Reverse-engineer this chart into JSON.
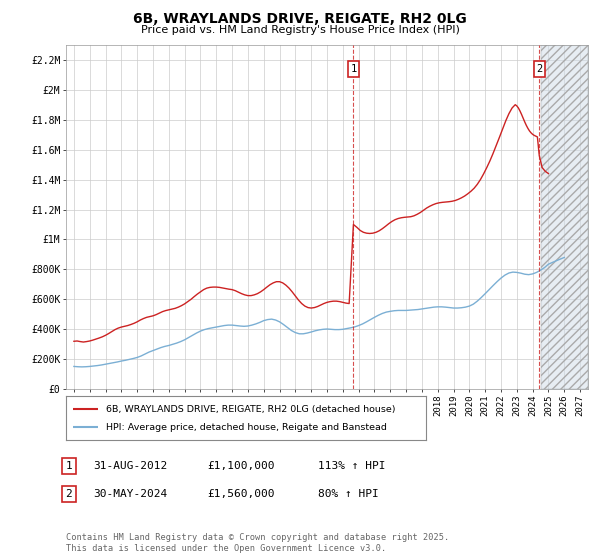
{
  "title_line1": "6B, WRAYLANDS DRIVE, REIGATE, RH2 0LG",
  "title_line2": "Price paid vs. HM Land Registry's House Price Index (HPI)",
  "legend_label1": "6B, WRAYLANDS DRIVE, REIGATE, RH2 0LG (detached house)",
  "legend_label2": "HPI: Average price, detached house, Reigate and Banstead",
  "annotation1": {
    "num": "1",
    "date": "31-AUG-2012",
    "price": "£1,100,000",
    "hpi": "113% ↑ HPI",
    "x": 2012.67
  },
  "annotation2": {
    "num": "2",
    "date": "30-MAY-2024",
    "price": "£1,560,000",
    "hpi": "80% ↑ HPI",
    "x": 2024.42
  },
  "footer": "Contains HM Land Registry data © Crown copyright and database right 2025.\nThis data is licensed under the Open Government Licence v3.0.",
  "hpi_color": "#7bafd4",
  "price_color": "#cc2222",
  "shade_color": "#d0dce8",
  "background_color": "#ffffff",
  "grid_color": "#cccccc",
  "ylim": [
    0,
    2300000
  ],
  "xlim": [
    1994.5,
    2027.5
  ],
  "shade_start": 2024.5,
  "yticks": [
    0,
    200000,
    400000,
    600000,
    800000,
    1000000,
    1200000,
    1400000,
    1600000,
    1800000,
    2000000,
    2200000
  ],
  "ytick_labels": [
    "£0",
    "£200K",
    "£400K",
    "£600K",
    "£800K",
    "£1M",
    "£1.2M",
    "£1.4M",
    "£1.6M",
    "£1.8M",
    "£2M",
    "£2.2M"
  ],
  "xticks": [
    1995,
    1996,
    1997,
    1998,
    1999,
    2000,
    2001,
    2002,
    2003,
    2004,
    2005,
    2006,
    2007,
    2008,
    2009,
    2010,
    2011,
    2012,
    2013,
    2014,
    2015,
    2016,
    2017,
    2018,
    2019,
    2020,
    2021,
    2022,
    2023,
    2024,
    2025,
    2026,
    2027
  ],
  "hpi_data": [
    [
      1995.0,
      152000
    ],
    [
      1995.25,
      150000
    ],
    [
      1995.5,
      149000
    ],
    [
      1995.75,
      150000
    ],
    [
      1996.0,
      152000
    ],
    [
      1996.25,
      155000
    ],
    [
      1996.5,
      158000
    ],
    [
      1996.75,
      162000
    ],
    [
      1997.0,
      167000
    ],
    [
      1997.25,
      172000
    ],
    [
      1997.5,
      177000
    ],
    [
      1997.75,
      182000
    ],
    [
      1998.0,
      188000
    ],
    [
      1998.25,
      193000
    ],
    [
      1998.5,
      199000
    ],
    [
      1998.75,
      205000
    ],
    [
      1999.0,
      212000
    ],
    [
      1999.25,
      222000
    ],
    [
      1999.5,
      235000
    ],
    [
      1999.75,
      248000
    ],
    [
      2000.0,
      258000
    ],
    [
      2000.25,
      268000
    ],
    [
      2000.5,
      278000
    ],
    [
      2000.75,
      286000
    ],
    [
      2001.0,
      292000
    ],
    [
      2001.25,
      300000
    ],
    [
      2001.5,
      308000
    ],
    [
      2001.75,
      318000
    ],
    [
      2002.0,
      330000
    ],
    [
      2002.25,
      345000
    ],
    [
      2002.5,
      360000
    ],
    [
      2002.75,
      375000
    ],
    [
      2003.0,
      388000
    ],
    [
      2003.25,
      398000
    ],
    [
      2003.5,
      405000
    ],
    [
      2003.75,
      410000
    ],
    [
      2004.0,
      415000
    ],
    [
      2004.25,
      420000
    ],
    [
      2004.5,
      425000
    ],
    [
      2004.75,
      428000
    ],
    [
      2005.0,
      428000
    ],
    [
      2005.25,
      425000
    ],
    [
      2005.5,
      422000
    ],
    [
      2005.75,
      420000
    ],
    [
      2006.0,
      422000
    ],
    [
      2006.25,
      428000
    ],
    [
      2006.5,
      436000
    ],
    [
      2006.75,
      446000
    ],
    [
      2007.0,
      458000
    ],
    [
      2007.25,
      465000
    ],
    [
      2007.5,
      468000
    ],
    [
      2007.75,
      462000
    ],
    [
      2008.0,
      450000
    ],
    [
      2008.25,
      432000
    ],
    [
      2008.5,
      412000
    ],
    [
      2008.75,
      392000
    ],
    [
      2009.0,
      378000
    ],
    [
      2009.25,
      370000
    ],
    [
      2009.5,
      370000
    ],
    [
      2009.75,
      375000
    ],
    [
      2010.0,
      382000
    ],
    [
      2010.25,
      390000
    ],
    [
      2010.5,
      396000
    ],
    [
      2010.75,
      400000
    ],
    [
      2011.0,
      402000
    ],
    [
      2011.25,
      400000
    ],
    [
      2011.5,
      398000
    ],
    [
      2011.75,
      398000
    ],
    [
      2012.0,
      400000
    ],
    [
      2012.25,
      405000
    ],
    [
      2012.5,
      410000
    ],
    [
      2012.75,
      416000
    ],
    [
      2013.0,
      425000
    ],
    [
      2013.25,
      436000
    ],
    [
      2013.5,
      450000
    ],
    [
      2013.75,
      465000
    ],
    [
      2014.0,
      480000
    ],
    [
      2014.25,
      494000
    ],
    [
      2014.5,
      506000
    ],
    [
      2014.75,
      515000
    ],
    [
      2015.0,
      520000
    ],
    [
      2015.25,
      524000
    ],
    [
      2015.5,
      526000
    ],
    [
      2015.75,
      526000
    ],
    [
      2016.0,
      526000
    ],
    [
      2016.25,
      528000
    ],
    [
      2016.5,
      530000
    ],
    [
      2016.75,
      532000
    ],
    [
      2017.0,
      536000
    ],
    [
      2017.25,
      540000
    ],
    [
      2017.5,
      544000
    ],
    [
      2017.75,
      548000
    ],
    [
      2018.0,
      550000
    ],
    [
      2018.25,
      550000
    ],
    [
      2018.5,
      548000
    ],
    [
      2018.75,
      545000
    ],
    [
      2019.0,
      542000
    ],
    [
      2019.25,
      542000
    ],
    [
      2019.5,
      544000
    ],
    [
      2019.75,
      548000
    ],
    [
      2020.0,
      555000
    ],
    [
      2020.25,
      568000
    ],
    [
      2020.5,
      588000
    ],
    [
      2020.75,
      612000
    ],
    [
      2021.0,
      638000
    ],
    [
      2021.25,
      665000
    ],
    [
      2021.5,
      692000
    ],
    [
      2021.75,
      718000
    ],
    [
      2022.0,
      742000
    ],
    [
      2022.25,
      762000
    ],
    [
      2022.5,
      776000
    ],
    [
      2022.75,
      782000
    ],
    [
      2023.0,
      780000
    ],
    [
      2023.25,
      775000
    ],
    [
      2023.5,
      768000
    ],
    [
      2023.75,
      765000
    ],
    [
      2024.0,
      770000
    ],
    [
      2024.25,
      780000
    ],
    [
      2024.5,
      795000
    ],
    [
      2024.75,
      812000
    ],
    [
      2025.0,
      835000
    ],
    [
      2025.5,
      858000
    ],
    [
      2026.0,
      880000
    ]
  ],
  "price_data": [
    [
      1995.0,
      320000
    ],
    [
      1995.2,
      322000
    ],
    [
      1995.4,
      318000
    ],
    [
      1995.6,
      315000
    ],
    [
      1995.8,
      318000
    ],
    [
      1996.0,
      322000
    ],
    [
      1996.2,
      328000
    ],
    [
      1996.4,
      335000
    ],
    [
      1996.6,
      342000
    ],
    [
      1996.8,
      350000
    ],
    [
      1997.0,
      360000
    ],
    [
      1997.2,
      372000
    ],
    [
      1997.4,
      385000
    ],
    [
      1997.6,
      398000
    ],
    [
      1997.8,
      408000
    ],
    [
      1998.0,
      415000
    ],
    [
      1998.2,
      420000
    ],
    [
      1998.4,
      425000
    ],
    [
      1998.6,
      432000
    ],
    [
      1998.8,
      440000
    ],
    [
      1999.0,
      450000
    ],
    [
      1999.2,
      462000
    ],
    [
      1999.4,
      472000
    ],
    [
      1999.6,
      480000
    ],
    [
      1999.8,
      485000
    ],
    [
      2000.0,
      490000
    ],
    [
      2000.2,
      498000
    ],
    [
      2000.4,
      508000
    ],
    [
      2000.6,
      518000
    ],
    [
      2000.8,
      525000
    ],
    [
      2001.0,
      530000
    ],
    [
      2001.2,
      535000
    ],
    [
      2001.4,
      540000
    ],
    [
      2001.6,
      548000
    ],
    [
      2001.8,
      558000
    ],
    [
      2002.0,
      570000
    ],
    [
      2002.2,
      585000
    ],
    [
      2002.4,
      600000
    ],
    [
      2002.6,
      618000
    ],
    [
      2002.8,
      635000
    ],
    [
      2003.0,
      650000
    ],
    [
      2003.2,
      665000
    ],
    [
      2003.4,
      675000
    ],
    [
      2003.6,
      680000
    ],
    [
      2003.8,
      682000
    ],
    [
      2004.0,
      682000
    ],
    [
      2004.2,
      680000
    ],
    [
      2004.4,
      676000
    ],
    [
      2004.6,
      672000
    ],
    [
      2004.8,
      668000
    ],
    [
      2005.0,
      665000
    ],
    [
      2005.2,
      658000
    ],
    [
      2005.4,
      648000
    ],
    [
      2005.6,
      638000
    ],
    [
      2005.8,
      630000
    ],
    [
      2006.0,
      625000
    ],
    [
      2006.2,
      625000
    ],
    [
      2006.4,
      630000
    ],
    [
      2006.6,
      638000
    ],
    [
      2006.8,
      650000
    ],
    [
      2007.0,
      665000
    ],
    [
      2007.2,
      682000
    ],
    [
      2007.4,
      698000
    ],
    [
      2007.6,
      710000
    ],
    [
      2007.8,
      718000
    ],
    [
      2008.0,
      718000
    ],
    [
      2008.2,
      710000
    ],
    [
      2008.4,
      695000
    ],
    [
      2008.6,
      675000
    ],
    [
      2008.8,
      650000
    ],
    [
      2009.0,
      622000
    ],
    [
      2009.2,
      595000
    ],
    [
      2009.4,
      572000
    ],
    [
      2009.6,
      555000
    ],
    [
      2009.8,
      545000
    ],
    [
      2010.0,
      542000
    ],
    [
      2010.2,
      545000
    ],
    [
      2010.4,
      552000
    ],
    [
      2010.6,
      562000
    ],
    [
      2010.8,
      572000
    ],
    [
      2011.0,
      580000
    ],
    [
      2011.2,
      585000
    ],
    [
      2011.4,
      588000
    ],
    [
      2011.6,
      588000
    ],
    [
      2011.8,
      585000
    ],
    [
      2012.0,
      580000
    ],
    [
      2012.2,
      575000
    ],
    [
      2012.4,
      572000
    ],
    [
      2012.67,
      1100000
    ],
    [
      2012.9,
      1080000
    ],
    [
      2013.1,
      1060000
    ],
    [
      2013.3,
      1048000
    ],
    [
      2013.5,
      1042000
    ],
    [
      2013.7,
      1040000
    ],
    [
      2013.9,
      1042000
    ],
    [
      2014.1,
      1048000
    ],
    [
      2014.3,
      1058000
    ],
    [
      2014.5,
      1072000
    ],
    [
      2014.7,
      1088000
    ],
    [
      2014.9,
      1105000
    ],
    [
      2015.1,
      1120000
    ],
    [
      2015.3,
      1132000
    ],
    [
      2015.5,
      1140000
    ],
    [
      2015.7,
      1145000
    ],
    [
      2015.9,
      1148000
    ],
    [
      2016.1,
      1150000
    ],
    [
      2016.3,
      1152000
    ],
    [
      2016.5,
      1158000
    ],
    [
      2016.7,
      1168000
    ],
    [
      2016.9,
      1180000
    ],
    [
      2017.1,
      1195000
    ],
    [
      2017.3,
      1210000
    ],
    [
      2017.5,
      1222000
    ],
    [
      2017.7,
      1232000
    ],
    [
      2017.9,
      1240000
    ],
    [
      2018.1,
      1245000
    ],
    [
      2018.3,
      1248000
    ],
    [
      2018.5,
      1250000
    ],
    [
      2018.7,
      1252000
    ],
    [
      2018.9,
      1255000
    ],
    [
      2019.1,
      1260000
    ],
    [
      2019.3,
      1268000
    ],
    [
      2019.5,
      1278000
    ],
    [
      2019.7,
      1290000
    ],
    [
      2019.9,
      1305000
    ],
    [
      2020.1,
      1322000
    ],
    [
      2020.3,
      1342000
    ],
    [
      2020.5,
      1368000
    ],
    [
      2020.7,
      1400000
    ],
    [
      2020.9,
      1438000
    ],
    [
      2021.1,
      1480000
    ],
    [
      2021.3,
      1525000
    ],
    [
      2021.5,
      1575000
    ],
    [
      2021.7,
      1628000
    ],
    [
      2021.9,
      1682000
    ],
    [
      2022.1,
      1738000
    ],
    [
      2022.3,
      1792000
    ],
    [
      2022.5,
      1840000
    ],
    [
      2022.7,
      1878000
    ],
    [
      2022.9,
      1900000
    ],
    [
      2023.0,
      1892000
    ],
    [
      2023.1,
      1878000
    ],
    [
      2023.2,
      1858000
    ],
    [
      2023.3,
      1835000
    ],
    [
      2023.4,
      1810000
    ],
    [
      2023.5,
      1785000
    ],
    [
      2023.6,
      1762000
    ],
    [
      2023.7,
      1742000
    ],
    [
      2023.8,
      1725000
    ],
    [
      2023.9,
      1712000
    ],
    [
      2024.0,
      1702000
    ],
    [
      2024.1,
      1695000
    ],
    [
      2024.2,
      1690000
    ],
    [
      2024.3,
      1685000
    ],
    [
      2024.42,
      1560000
    ],
    [
      2024.6,
      1480000
    ],
    [
      2024.8,
      1455000
    ],
    [
      2025.0,
      1440000
    ]
  ]
}
